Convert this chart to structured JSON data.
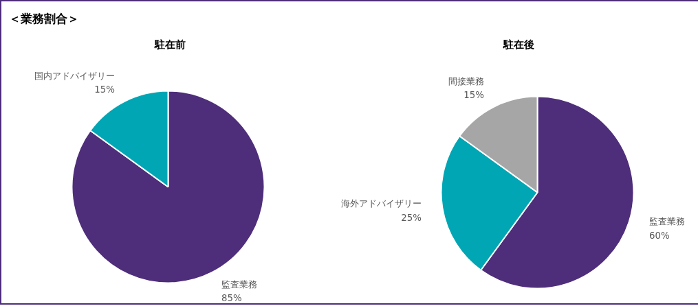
{
  "chart_data": [
    {
      "type": "pie",
      "title": "駐在前",
      "annotations": [
        "＜業務割合＞"
      ],
      "categories": [
        "監査業務",
        "国内アドバイザリー"
      ],
      "values": [
        85,
        15
      ],
      "colors": [
        "#4e2d7a",
        "#00a6b4"
      ],
      "value_labels": [
        "85%",
        "15%"
      ],
      "legend": false
    },
    {
      "type": "pie",
      "title": "駐在後",
      "categories": [
        "監査業務",
        "海外アドバイザリー",
        "間接業務"
      ],
      "values": [
        60,
        25,
        15
      ],
      "colors": [
        "#4e2d7a",
        "#00a6b4",
        "#a6a6a6"
      ],
      "value_labels": [
        "60%",
        "25%",
        "15%"
      ],
      "legend": false
    }
  ]
}
